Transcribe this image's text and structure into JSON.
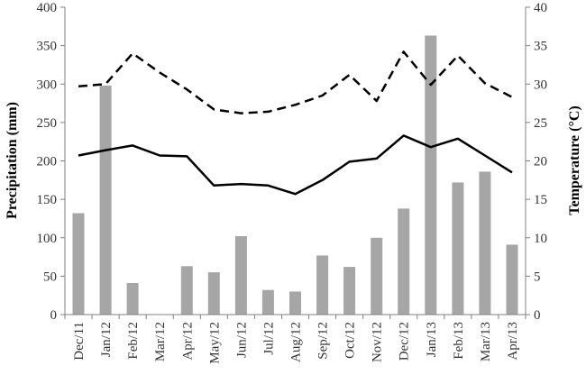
{
  "chart_data": {
    "type": "bar",
    "categories": [
      "Dec/11",
      "Jan/12",
      "Feb/12",
      "Mar/12",
      "Apr/12",
      "May/12",
      "Jun/12",
      "Jul/12",
      "Aug/12",
      "Sep/12",
      "Oct/12",
      "Nov/12",
      "Dec/12",
      "Jan/13",
      "Feb/13",
      "Mar/13",
      "Apr/13"
    ],
    "series": [
      {
        "type": "bar",
        "axis": "left",
        "color": "#a6a6a6",
        "values": [
          132,
          298,
          41,
          0,
          63,
          55,
          102,
          32,
          30,
          77,
          62,
          100,
          138,
          363,
          172,
          186,
          91
        ]
      },
      {
        "type": "line",
        "axis": "right",
        "color": "#000000",
        "dash": "dashed",
        "values": [
          29.7,
          30.0,
          34.0,
          31.5,
          29.3,
          26.7,
          26.2,
          26.4,
          27.3,
          28.5,
          31.2,
          27.8,
          34.2,
          29.9,
          33.7,
          30.1,
          28.3
        ]
      },
      {
        "type": "line",
        "axis": "right",
        "color": "#000000",
        "dash": "solid",
        "values": [
          20.7,
          21.4,
          22.0,
          20.7,
          20.6,
          16.8,
          17.0,
          16.8,
          15.7,
          17.5,
          19.9,
          20.3,
          23.3,
          21.8,
          22.9,
          20.7,
          18.5
        ]
      }
    ],
    "y_left": {
      "label": "Precipitation (mm)",
      "ylim": [
        0,
        400
      ],
      "ticks": [
        "0",
        "50",
        "100",
        "150",
        "200",
        "250",
        "300",
        "350",
        "400"
      ]
    },
    "y_right": {
      "label": "Temperature (°C)",
      "ylim": [
        0,
        40
      ],
      "ticks": [
        "0",
        "5",
        "10",
        "15",
        "20",
        "25",
        "30",
        "35",
        "40"
      ]
    },
    "title": "",
    "xlabel": "",
    "grid": false,
    "legend": "none"
  }
}
